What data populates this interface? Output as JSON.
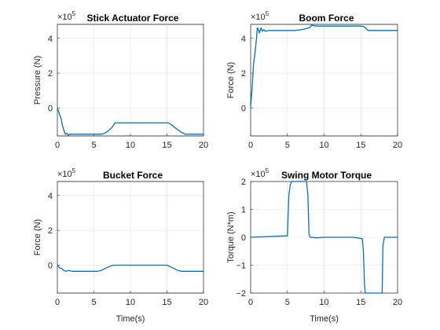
{
  "chart_data": [
    {
      "type": "line",
      "title": "Stick Actuator Force",
      "xlabel": "",
      "ylabel": "Pressure (N)",
      "exponent": "×10",
      "exponent_power": "5",
      "xlim": [
        0,
        20
      ],
      "ylim": [
        -1.6,
        4.8
      ],
      "xticks": [
        0,
        5,
        10,
        15,
        20
      ],
      "yticks": [
        0,
        2,
        4
      ],
      "series": [
        {
          "color": "#0072BD",
          "x": [
            0,
            0.25,
            0.5,
            0.7,
            0.9,
            1.1,
            1.3,
            1.5,
            1.7,
            2,
            3,
            4,
            5,
            5.5,
            6,
            6.5,
            7,
            7.5,
            7.9,
            8.5,
            10,
            12,
            14,
            15.2,
            15.6,
            16,
            16.5,
            17,
            17.5,
            18,
            19,
            20
          ],
          "y": [
            0,
            -0.3,
            -0.6,
            -1.0,
            -1.3,
            -1.5,
            -1.45,
            -1.55,
            -1.5,
            -1.5,
            -1.5,
            -1.5,
            -1.5,
            -1.5,
            -1.5,
            -1.45,
            -1.3,
            -1.1,
            -0.85,
            -0.85,
            -0.85,
            -0.85,
            -0.85,
            -0.85,
            -0.95,
            -1.1,
            -1.25,
            -1.4,
            -1.5,
            -1.5,
            -1.5,
            -1.5
          ]
        }
      ]
    },
    {
      "type": "line",
      "title": "Boom Force",
      "xlabel": "",
      "ylabel": "Force (N)",
      "exponent": "×10",
      "exponent_power": "5",
      "xlim": [
        0,
        20
      ],
      "ylim": [
        -1.6,
        4.8
      ],
      "xticks": [
        0,
        5,
        10,
        15,
        20
      ],
      "yticks": [
        0,
        2,
        4
      ],
      "series": [
        {
          "color": "#0072BD",
          "x": [
            0,
            0.2,
            0.4,
            0.6,
            0.8,
            0.9,
            1.0,
            1.2,
            1.4,
            1.6,
            1.8,
            2.0,
            2.5,
            3,
            4,
            5,
            6,
            7,
            7.5,
            8.0,
            8.3,
            9,
            10,
            12,
            14,
            15,
            15.5,
            16,
            17,
            18,
            19,
            20
          ],
          "y": [
            0,
            1.2,
            2.5,
            3.2,
            4.0,
            4.6,
            4.55,
            4.3,
            4.6,
            4.4,
            4.5,
            4.4,
            4.45,
            4.45,
            4.45,
            4.45,
            4.45,
            4.5,
            4.55,
            4.6,
            4.75,
            4.7,
            4.7,
            4.7,
            4.7,
            4.7,
            4.65,
            4.45,
            4.45,
            4.45,
            4.45,
            4.45
          ]
        }
      ]
    },
    {
      "type": "line",
      "title": "Bucket Force",
      "xlabel": "Time(s)",
      "ylabel": "Force (N)",
      "exponent": "×10",
      "exponent_power": "5",
      "xlim": [
        0,
        20
      ],
      "ylim": [
        -1.6,
        4.8
      ],
      "xticks": [
        0,
        5,
        10,
        15,
        20
      ],
      "yticks": [
        0,
        2,
        4
      ],
      "series": [
        {
          "color": "#0072BD",
          "x": [
            0,
            0.3,
            0.6,
            0.9,
            1.2,
            1.5,
            2,
            3,
            4,
            5,
            5.5,
            6,
            6.5,
            7,
            7.5,
            8,
            8.5,
            10,
            12,
            14,
            15,
            15.5,
            16,
            16.5,
            17,
            18,
            19,
            20
          ],
          "y": [
            0,
            -0.15,
            -0.2,
            -0.3,
            -0.35,
            -0.3,
            -0.35,
            -0.35,
            -0.35,
            -0.35,
            -0.35,
            -0.3,
            -0.2,
            -0.1,
            -0.02,
            0,
            0,
            0,
            0,
            0,
            0,
            -0.1,
            -0.2,
            -0.3,
            -0.35,
            -0.35,
            -0.35,
            -0.35
          ]
        }
      ]
    },
    {
      "type": "line",
      "title": "Swing Motor Torque",
      "xlabel": "Time(s)",
      "ylabel": "Torque (N*m)",
      "exponent": "×10",
      "exponent_power": "5",
      "xlim": [
        0,
        20
      ],
      "ylim": [
        -2,
        2
      ],
      "xticks": [
        0,
        5,
        10,
        15,
        20
      ],
      "yticks": [
        -2,
        -1,
        0,
        1,
        2
      ],
      "series": [
        {
          "color": "#0072BD",
          "x": [
            0,
            5.0,
            5.05,
            5.2,
            5.4,
            5.6,
            5.8,
            6.0,
            7.0,
            7.6,
            7.8,
            7.95,
            8.1,
            9,
            10,
            12,
            14,
            15.2,
            15.35,
            15.5,
            15.6,
            16,
            17,
            17.9,
            18.0,
            18.2,
            19,
            20
          ],
          "y": [
            0,
            0.05,
            0.4,
            1.5,
            1.9,
            2.0,
            2.0,
            2.0,
            2.0,
            2.0,
            1.5,
            0.1,
            0.0,
            -0.02,
            0,
            0,
            0,
            -0.05,
            -0.5,
            -1.7,
            -2.0,
            -2.0,
            -2.0,
            -2.0,
            -0.3,
            0,
            0,
            0
          ]
        }
      ]
    }
  ]
}
